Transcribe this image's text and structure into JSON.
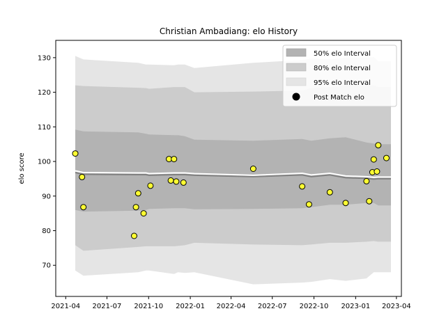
{
  "chart_data": {
    "type": "line",
    "title": "Christian Ambadiang: elo History",
    "xlabel": "",
    "ylabel": "elo score",
    "xlim": [
      "2021-03-10",
      "2023-04-12"
    ],
    "ylim": [
      61,
      135
    ],
    "x_ticks": [
      "2021-04",
      "2021-07",
      "2021-10",
      "2022-01",
      "2022-04",
      "2022-07",
      "2022-10",
      "2023-01",
      "2023-04"
    ],
    "y_ticks": [
      70,
      80,
      90,
      100,
      110,
      120,
      130
    ],
    "grid": false,
    "legend_position": "top-right",
    "legend": [
      "50% elo Interval",
      "80% elo Interval",
      "95% elo Interval",
      "Post Match elo"
    ],
    "colors": {
      "band50": "#b3b3b3",
      "band80": "#cccccc",
      "band95": "#e5e5e5",
      "mean_line": "#808080",
      "median_line": "#ffffff",
      "points_fill": "#ffff33",
      "points_edge": "#000000"
    },
    "bands": {
      "dates": [
        "2021-04-22",
        "2021-05-10",
        "2021-09-08",
        "2021-09-25",
        "2021-10-02",
        "2021-11-26",
        "2021-12-05",
        "2021-12-20",
        "2022-01-10",
        "2022-05-20",
        "2022-09-05",
        "2022-09-25",
        "2022-11-05",
        "2022-12-10",
        "2023-01-25",
        "2023-02-10",
        "2023-02-20",
        "2023-03-20"
      ],
      "p95_high": [
        130.5,
        129.5,
        128.5,
        128.0,
        128.0,
        127.8,
        128.0,
        128.0,
        127.0,
        128.5,
        129.3,
        129.8,
        129.5,
        130.0,
        130.0,
        130.2,
        129.0,
        129.0
      ],
      "p80_high": [
        122.0,
        121.8,
        121.3,
        121.2,
        121.0,
        121.5,
        121.5,
        121.5,
        120.0,
        120.2,
        120.5,
        121.2,
        121.5,
        122.0,
        121.8,
        122.0,
        121.5,
        121.5
      ],
      "p50_high": [
        109.2,
        108.7,
        108.4,
        108.0,
        107.8,
        107.6,
        107.6,
        107.3,
        106.3,
        106.0,
        106.5,
        106.0,
        106.7,
        107.0,
        105.5,
        105.2,
        105.0,
        105.0
      ],
      "median": [
        97.3,
        96.8,
        96.7,
        96.7,
        96.5,
        96.7,
        96.7,
        96.7,
        96.5,
        96.0,
        96.6,
        96.1,
        96.6,
        95.8,
        95.6,
        95.4,
        95.5,
        95.5
      ],
      "mean": [
        96.8,
        96.3,
        96.2,
        96.2,
        96.0,
        96.2,
        96.2,
        96.2,
        96.0,
        95.6,
        96.1,
        95.6,
        96.1,
        95.3,
        95.1,
        94.9,
        95.0,
        95.0
      ],
      "p50_low": [
        86.0,
        85.5,
        85.8,
        86.0,
        86.3,
        86.5,
        86.5,
        86.5,
        86.2,
        86.3,
        86.5,
        86.8,
        87.5,
        87.5,
        88.0,
        88.0,
        87.3,
        87.3
      ],
      "p80_low": [
        75.8,
        74.2,
        75.3,
        75.5,
        75.5,
        75.5,
        75.6,
        75.8,
        76.5,
        76.0,
        75.8,
        76.0,
        76.5,
        76.5,
        76.8,
        77.0,
        76.8,
        76.8
      ],
      "p95_low": [
        68.5,
        67.0,
        68.0,
        68.5,
        68.5,
        67.5,
        68.0,
        67.8,
        68.0,
        64.5,
        65.0,
        65.2,
        66.0,
        65.5,
        66.2,
        68.0,
        68.0,
        68.0
      ]
    },
    "series": [
      {
        "name": "Post Match elo",
        "points": [
          {
            "x": "2021-04-22",
            "y": 102.3
          },
          {
            "x": "2021-05-07",
            "y": 95.5
          },
          {
            "x": "2021-05-10",
            "y": 86.8
          },
          {
            "x": "2021-08-30",
            "y": 78.5
          },
          {
            "x": "2021-09-03",
            "y": 86.8
          },
          {
            "x": "2021-09-08",
            "y": 90.8
          },
          {
            "x": "2021-09-20",
            "y": 85.0
          },
          {
            "x": "2021-10-05",
            "y": 93.0
          },
          {
            "x": "2021-11-15",
            "y": 100.7
          },
          {
            "x": "2021-11-19",
            "y": 94.5
          },
          {
            "x": "2021-11-26",
            "y": 100.7
          },
          {
            "x": "2021-12-01",
            "y": 94.2
          },
          {
            "x": "2021-12-17",
            "y": 93.9
          },
          {
            "x": "2022-05-20",
            "y": 97.9
          },
          {
            "x": "2022-09-05",
            "y": 92.8
          },
          {
            "x": "2022-09-20",
            "y": 87.6
          },
          {
            "x": "2022-11-05",
            "y": 91.1
          },
          {
            "x": "2022-12-10",
            "y": 88.0
          },
          {
            "x": "2023-01-25",
            "y": 94.3
          },
          {
            "x": "2023-01-31",
            "y": 88.5
          },
          {
            "x": "2023-02-07",
            "y": 96.9
          },
          {
            "x": "2023-02-10",
            "y": 100.6
          },
          {
            "x": "2023-02-17",
            "y": 97.1
          },
          {
            "x": "2023-02-20",
            "y": 104.7
          },
          {
            "x": "2023-03-10",
            "y": 101.0
          }
        ]
      }
    ]
  }
}
